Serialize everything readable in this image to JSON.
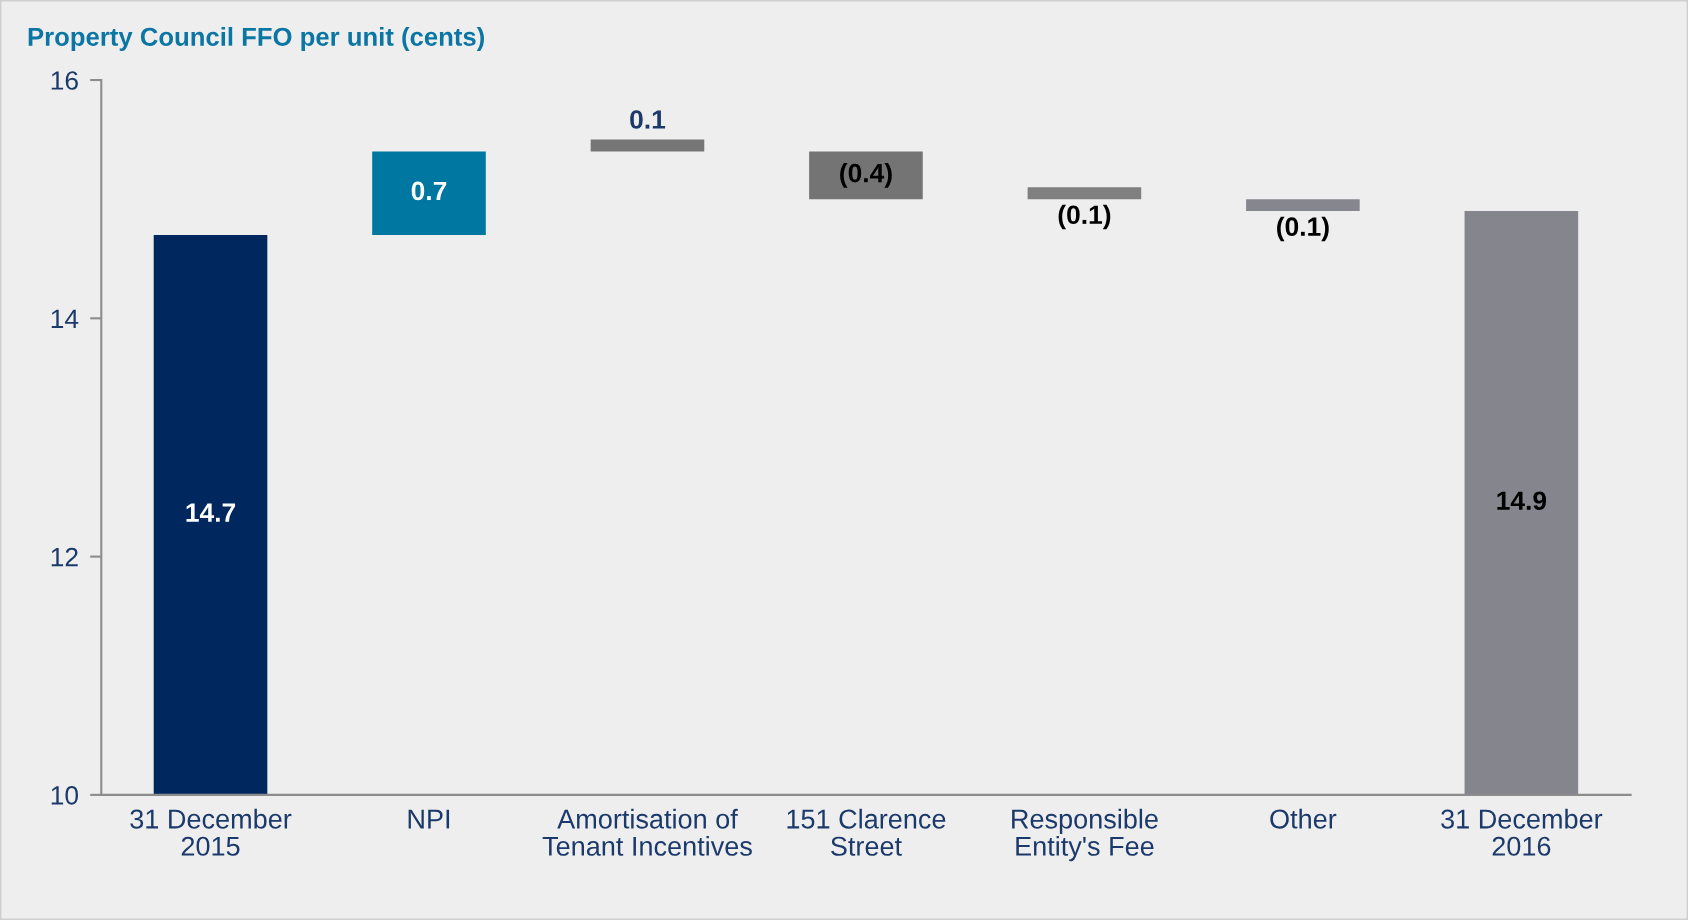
{
  "chart_data": {
    "type": "bar",
    "title": "Property Council FFO per unit (cents)",
    "categories": [
      "31 December\n2015",
      "NPI",
      "Amortisation of\nTenant Incentives",
      "151 Clarence\nStreet",
      "Responsible\nEntity's Fee",
      "Other",
      "31 December\n2016"
    ],
    "values": [
      14.7,
      0.7,
      0.1,
      -0.4,
      -0.1,
      -0.1,
      14.9
    ],
    "base": [
      0,
      14.7,
      15.4,
      15.4,
      15.1,
      15.0,
      0
    ],
    "colors": [
      "#00285e",
      "#0077a0",
      "#767676",
      "#747474",
      "#808080",
      "#86868e",
      "#85858d"
    ],
    "value_labels": [
      "14.7",
      "0.7",
      "0.1",
      "(0.4)",
      "(0.1)",
      "(0.1)",
      "14.9"
    ],
    "ylim": [
      10,
      16
    ],
    "yticks": [
      10,
      12,
      14,
      16
    ]
  }
}
